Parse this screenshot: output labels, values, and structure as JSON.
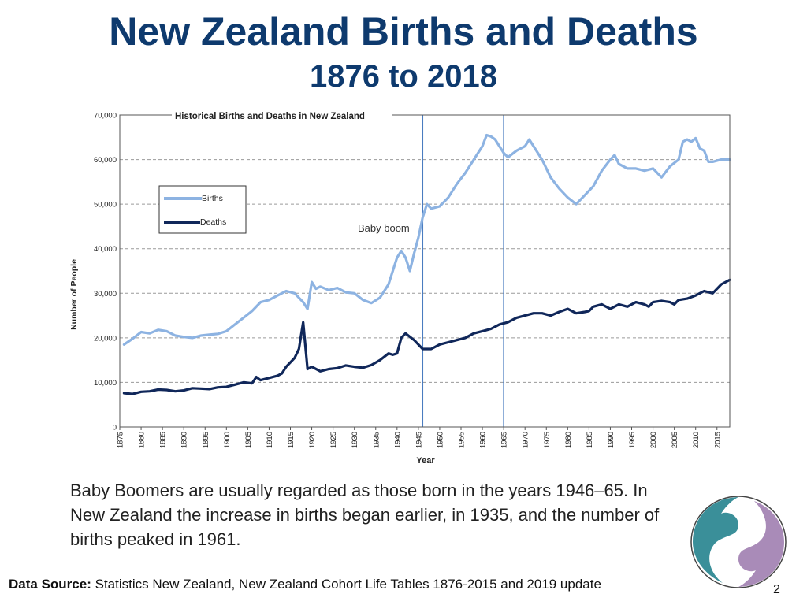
{
  "slide": {
    "title": "New Zealand Births and Deaths",
    "subtitle": "1876 to 2018",
    "body": "Baby Boomers are usually regarded as those born in the years 1946–65. In New Zealand the increase in births began earlier, in 1935, and the number of births peaked in 1961.",
    "source_label": "Data Source:",
    "source_text": "Statistics New Zealand, New Zealand Cohort Life Tables 1876-2015 and 2019 update",
    "page_number": "2"
  },
  "colors": {
    "title": "#0e3a6e",
    "births": "#8db3e2",
    "deaths": "#10275a",
    "marker_lines": "#4a7cc0",
    "grid": "#9a9a9a",
    "logo_teal": "#3a8f99",
    "logo_purple": "#a98bb8"
  },
  "chart_data": {
    "type": "line",
    "title": "Historical Births and Deaths in New Zealand",
    "xlabel": "Year",
    "ylabel": "Number of People",
    "xlim": [
      1875,
      2018
    ],
    "ylim": [
      0,
      70000
    ],
    "yticks": [
      0,
      10000,
      20000,
      30000,
      40000,
      50000,
      60000,
      70000
    ],
    "ytick_labels": [
      "0",
      "10,000",
      "20,000",
      "30,000",
      "40,000",
      "50,000",
      "60,000",
      "70,000"
    ],
    "xticks": [
      1875,
      1880,
      1885,
      1890,
      1895,
      1900,
      1905,
      1910,
      1915,
      1920,
      1925,
      1930,
      1935,
      1940,
      1945,
      1950,
      1955,
      1960,
      1965,
      1970,
      1975,
      1980,
      1985,
      1990,
      1995,
      2000,
      2005,
      2010,
      2015
    ],
    "grid": true,
    "legend_position": "upper-left",
    "annotation": {
      "text": "Baby boom",
      "marker_years": [
        1946,
        1965
      ]
    },
    "series": [
      {
        "name": "Births",
        "x": [
          1876,
          1878,
          1880,
          1882,
          1884,
          1886,
          1888,
          1890,
          1892,
          1894,
          1896,
          1898,
          1900,
          1902,
          1904,
          1906,
          1908,
          1910,
          1912,
          1914,
          1916,
          1918,
          1919,
          1920,
          1921,
          1922,
          1924,
          1926,
          1928,
          1930,
          1932,
          1934,
          1936,
          1938,
          1939,
          1940,
          1941,
          1942,
          1943,
          1944,
          1945,
          1946,
          1947,
          1948,
          1950,
          1952,
          1954,
          1956,
          1958,
          1960,
          1961,
          1962,
          1963,
          1964,
          1965,
          1966,
          1968,
          1970,
          1971,
          1972,
          1974,
          1976,
          1978,
          1980,
          1982,
          1984,
          1986,
          1988,
          1990,
          1991,
          1992,
          1994,
          1996,
          1998,
          2000,
          2002,
          2004,
          2006,
          2007,
          2008,
          2009,
          2010,
          2011,
          2012,
          2013,
          2014,
          2016,
          2018
        ],
        "y": [
          18500,
          19800,
          21300,
          21000,
          21800,
          21500,
          20500,
          20200,
          20000,
          20500,
          20700,
          20900,
          21500,
          23000,
          24500,
          26000,
          28000,
          28500,
          29500,
          30500,
          30000,
          28000,
          26500,
          32500,
          31000,
          31500,
          30700,
          31200,
          30200,
          30000,
          28500,
          27800,
          29000,
          32000,
          35000,
          38000,
          39500,
          38000,
          35000,
          39000,
          42500,
          47000,
          50000,
          49000,
          49500,
          51500,
          54500,
          57000,
          60000,
          63000,
          65500,
          65200,
          64500,
          63000,
          61500,
          60500,
          62000,
          63000,
          64500,
          63000,
          60000,
          56000,
          53500,
          51500,
          50000,
          52000,
          54000,
          57500,
          60000,
          61000,
          59000,
          58000,
          58000,
          57500,
          58000,
          56000,
          58500,
          60000,
          64000,
          64500,
          64000,
          64800,
          62500,
          62000,
          59500,
          59500,
          60000,
          60000
        ]
      },
      {
        "name": "Deaths",
        "x": [
          1876,
          1878,
          1880,
          1882,
          1884,
          1886,
          1888,
          1890,
          1892,
          1894,
          1896,
          1898,
          1900,
          1902,
          1904,
          1906,
          1907,
          1908,
          1910,
          1912,
          1913,
          1914,
          1916,
          1917,
          1918,
          1919,
          1920,
          1922,
          1924,
          1926,
          1928,
          1930,
          1932,
          1934,
          1936,
          1938,
          1939,
          1940,
          1941,
          1942,
          1944,
          1946,
          1948,
          1950,
          1952,
          1954,
          1956,
          1958,
          1960,
          1962,
          1964,
          1966,
          1968,
          1970,
          1972,
          1974,
          1976,
          1978,
          1980,
          1982,
          1984,
          1985,
          1986,
          1988,
          1990,
          1992,
          1994,
          1996,
          1998,
          1999,
          2000,
          2002,
          2004,
          2005,
          2006,
          2008,
          2010,
          2012,
          2014,
          2016,
          2018
        ],
        "y": [
          7600,
          7400,
          7900,
          8000,
          8400,
          8300,
          8000,
          8200,
          8700,
          8600,
          8500,
          8900,
          9000,
          9500,
          10000,
          9800,
          11200,
          10500,
          11000,
          11500,
          12000,
          13500,
          15500,
          17500,
          23500,
          13000,
          13500,
          12500,
          13000,
          13200,
          13800,
          13500,
          13300,
          13900,
          15000,
          16500,
          16200,
          16500,
          20000,
          21000,
          19500,
          17500,
          17500,
          18500,
          19000,
          19500,
          20000,
          21000,
          21500,
          22000,
          23000,
          23500,
          24500,
          25000,
          25500,
          25500,
          25000,
          25800,
          26500,
          25500,
          25800,
          26000,
          27000,
          27500,
          26500,
          27500,
          27000,
          28000,
          27500,
          27000,
          28000,
          28300,
          28000,
          27500,
          28500,
          28800,
          29500,
          30500,
          30000,
          32000,
          33000
        ]
      }
    ]
  }
}
